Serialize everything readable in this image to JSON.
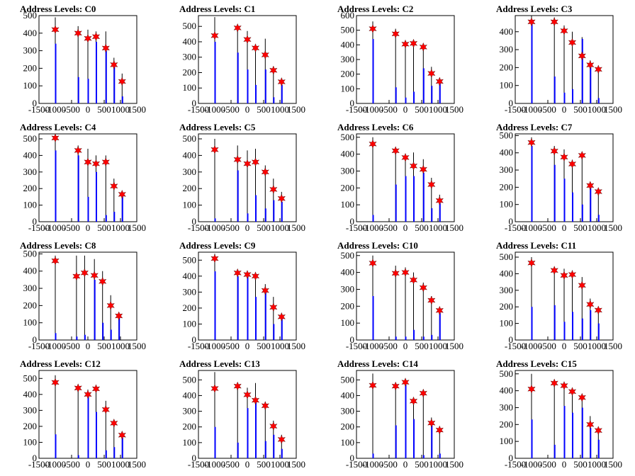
{
  "colors": {
    "bar": "#0000ff",
    "marker": "#ff0000",
    "frame": "#000000",
    "background": "#ffffff"
  },
  "chart_data": [
    {
      "type": "bar",
      "title": "Address Levels: C0",
      "xlim": [
        -1500,
        1500
      ],
      "ylim": [
        0,
        500
      ],
      "xticks": [
        -1500,
        -1000,
        -500,
        0,
        500,
        1000,
        1500
      ],
      "yticks": [
        0,
        100,
        200,
        300,
        400,
        500
      ],
      "yticklabels": [
        "0",
        "100",
        "200",
        "300",
        "400",
        "500"
      ],
      "peaks": [
        -1000,
        -300,
        0,
        250,
        550,
        800,
        1050
      ],
      "markers": [
        420,
        400,
        370,
        380,
        315,
        220,
        125
      ],
      "black_bars": [
        490,
        440,
        420,
        410,
        410,
        260,
        170
      ],
      "blue_bars": [
        340,
        150,
        140,
        350,
        300,
        210,
        40
      ]
    },
    {
      "type": "bar",
      "title": "Address Levels: C1",
      "xlim": [
        -1500,
        1500
      ],
      "ylim": [
        0,
        570
      ],
      "xticks": [
        -1500,
        -1000,
        -500,
        0,
        500,
        1000,
        1500
      ],
      "yticks": [
        0,
        100,
        200,
        300,
        400,
        500
      ],
      "yticklabels": [
        "0",
        "100",
        "200",
        "300",
        "400",
        "500"
      ],
      "peaks": [
        -1000,
        -300,
        0,
        250,
        550,
        800,
        1050
      ],
      "markers": [
        440,
        490,
        415,
        360,
        315,
        215,
        140
      ],
      "black_bars": [
        560,
        500,
        470,
        380,
        420,
        240,
        155
      ],
      "blue_bars": [
        400,
        330,
        220,
        120,
        220,
        40,
        120
      ]
    },
    {
      "type": "bar",
      "title": "Address Levels: C2",
      "xlim": [
        -1500,
        1500
      ],
      "ylim": [
        0,
        600
      ],
      "xticks": [
        -1500,
        -1000,
        -500,
        0,
        500,
        1000,
        1500
      ],
      "yticks": [
        0,
        100,
        200,
        300,
        400,
        500,
        600
      ],
      "yticklabels": [
        "0",
        "100",
        "200",
        "300",
        "400",
        "500",
        "600"
      ],
      "peaks": [
        -1000,
        -300,
        0,
        250,
        550,
        800,
        1050
      ],
      "markers": [
        510,
        475,
        405,
        410,
        385,
        205,
        150
      ],
      "black_bars": [
        560,
        510,
        420,
        420,
        400,
        250,
        175
      ],
      "blue_bars": [
        440,
        110,
        40,
        80,
        240,
        120,
        150
      ]
    },
    {
      "type": "bar",
      "title": "Address Levels: C3",
      "xlim": [
        -1500,
        1500
      ],
      "ylim": [
        0,
        490
      ],
      "xticks": [
        -1500,
        -1000,
        -500,
        0,
        500,
        1000,
        1500
      ],
      "yticks": [
        0,
        100,
        200,
        300,
        400
      ],
      "yticklabels": [
        "0",
        "100",
        "200",
        "300",
        "400"
      ],
      "peaks": [
        -1000,
        -300,
        0,
        250,
        550,
        800,
        1050
      ],
      "markers": [
        455,
        455,
        405,
        340,
        265,
        215,
        190
      ],
      "black_bars": [
        490,
        480,
        435,
        400,
        370,
        240,
        200
      ],
      "blue_bars": [
        460,
        150,
        60,
        80,
        360,
        210,
        30
      ]
    },
    {
      "type": "bar",
      "title": "Address Levels: C4",
      "xlim": [
        -1500,
        1500
      ],
      "ylim": [
        0,
        530
      ],
      "xticks": [
        -1500,
        -1000,
        -500,
        0,
        500,
        1000,
        1500
      ],
      "yticks": [
        0,
        100,
        200,
        300,
        400,
        500
      ],
      "yticklabels": [
        "0",
        "100",
        "200",
        "300",
        "400",
        "500"
      ],
      "peaks": [
        -1000,
        -300,
        0,
        250,
        550,
        800,
        1050
      ],
      "markers": [
        505,
        430,
        360,
        350,
        360,
        215,
        165
      ],
      "black_bars": [
        520,
        460,
        440,
        400,
        400,
        260,
        180
      ],
      "blue_bars": [
        430,
        400,
        150,
        300,
        40,
        60,
        160
      ]
    },
    {
      "type": "bar",
      "title": "Address Levels: C5",
      "xlim": [
        -1500,
        1500
      ],
      "ylim": [
        0,
        530
      ],
      "xticks": [
        -1500,
        -1000,
        -500,
        0,
        500,
        1000,
        1500
      ],
      "yticks": [
        0,
        100,
        200,
        300,
        400,
        500
      ],
      "yticklabels": [
        "0",
        "100",
        "200",
        "300",
        "400",
        "500"
      ],
      "peaks": [
        -1000,
        -300,
        0,
        250,
        550,
        800,
        1050
      ],
      "markers": [
        435,
        375,
        350,
        360,
        300,
        195,
        140
      ],
      "black_bars": [
        500,
        460,
        430,
        440,
        340,
        260,
        180
      ],
      "blue_bars": [
        20,
        310,
        50,
        160,
        80,
        130,
        120
      ]
    },
    {
      "type": "bar",
      "title": "Address Levels: C6",
      "xlim": [
        -1500,
        1500
      ],
      "ylim": [
        0,
        520
      ],
      "xticks": [
        -1500,
        -1000,
        -500,
        0,
        500,
        1000,
        1500
      ],
      "yticks": [
        0,
        100,
        200,
        300,
        400,
        500
      ],
      "yticklabels": [
        "0",
        "100",
        "200",
        "300",
        "400",
        "500"
      ],
      "peaks": [
        -1000,
        -300,
        0,
        250,
        550,
        800,
        1050
      ],
      "markers": [
        460,
        420,
        380,
        330,
        310,
        220,
        125
      ],
      "black_bars": [
        500,
        440,
        400,
        410,
        370,
        260,
        160
      ],
      "blue_bars": [
        40,
        220,
        270,
        270,
        290,
        80,
        110
      ]
    },
    {
      "type": "bar",
      "title": "Address Levels: C7",
      "xlim": [
        -1500,
        1500
      ],
      "ylim": [
        0,
        510
      ],
      "xticks": [
        -1500,
        -1000,
        -500,
        0,
        500,
        1000,
        1500
      ],
      "yticks": [
        0,
        100,
        200,
        300,
        400,
        500
      ],
      "yticklabels": [
        "0",
        "100",
        "200",
        "300",
        "400",
        "500"
      ],
      "peaks": [
        -1000,
        -300,
        0,
        250,
        550,
        800,
        1050
      ],
      "markers": [
        460,
        410,
        375,
        335,
        385,
        210,
        175
      ],
      "black_bars": [
        490,
        440,
        420,
        360,
        400,
        230,
        190
      ],
      "blue_bars": [
        440,
        330,
        250,
        170,
        100,
        200,
        40
      ]
    },
    {
      "type": "bar",
      "title": "Address Levels: C8",
      "xlim": [
        -1500,
        1500
      ],
      "ylim": [
        0,
        510
      ],
      "xticks": [
        -1500,
        -1000,
        -500,
        0,
        500,
        1000,
        1500
      ],
      "yticks": [
        0,
        100,
        200,
        300,
        400,
        500
      ],
      "yticklabels": [
        "0",
        "100",
        "200",
        "300",
        "400",
        "500"
      ],
      "peaks": [
        -1000,
        -350,
        -100,
        200,
        450,
        700,
        950
      ],
      "markers": [
        460,
        370,
        390,
        375,
        340,
        200,
        140
      ],
      "black_bars": [
        490,
        490,
        490,
        470,
        400,
        260,
        160
      ],
      "blue_bars": [
        40,
        20,
        30,
        350,
        100,
        60,
        130
      ]
    },
    {
      "type": "bar",
      "title": "Address Levels: C9",
      "xlim": [
        -1500,
        1500
      ],
      "ylim": [
        0,
        550
      ],
      "xticks": [
        -1500,
        -1000,
        -500,
        0,
        500,
        1000,
        1500
      ],
      "yticks": [
        0,
        100,
        200,
        300,
        400,
        500
      ],
      "yticklabels": [
        "0",
        "100",
        "200",
        "300",
        "400",
        "500"
      ],
      "peaks": [
        -1000,
        -300,
        0,
        250,
        550,
        800,
        1050
      ],
      "markers": [
        510,
        420,
        410,
        400,
        310,
        205,
        145
      ],
      "black_bars": [
        540,
        440,
        430,
        420,
        350,
        270,
        160
      ],
      "blue_bars": [
        430,
        400,
        400,
        270,
        300,
        100,
        140
      ]
    },
    {
      "type": "bar",
      "title": "Address Levels: C10",
      "xlim": [
        -1500,
        1500
      ],
      "ylim": [
        0,
        520
      ],
      "xticks": [
        -1500,
        -1000,
        -500,
        0,
        500,
        1000,
        1500
      ],
      "yticks": [
        0,
        100,
        200,
        300,
        400,
        500
      ],
      "yticklabels": [
        "0",
        "100",
        "200",
        "300",
        "400",
        "500"
      ],
      "peaks": [
        -1000,
        -300,
        0,
        250,
        550,
        800,
        1050
      ],
      "markers": [
        455,
        395,
        400,
        355,
        310,
        235,
        175
      ],
      "black_bars": [
        500,
        440,
        430,
        400,
        340,
        260,
        190
      ],
      "blue_bars": [
        260,
        20,
        20,
        60,
        20,
        30,
        160
      ]
    },
    {
      "type": "bar",
      "title": "Address Levels: C11",
      "xlim": [
        -1500,
        1500
      ],
      "ylim": [
        0,
        530
      ],
      "xticks": [
        -1500,
        -1000,
        -500,
        0,
        500,
        1000,
        1500
      ],
      "yticks": [
        0,
        100,
        200,
        300,
        400,
        500
      ],
      "yticklabels": [
        "0",
        "100",
        "200",
        "300",
        "400",
        "500"
      ],
      "peaks": [
        -1000,
        -300,
        0,
        250,
        550,
        800,
        1050
      ],
      "markers": [
        465,
        420,
        390,
        395,
        330,
        215,
        180
      ],
      "black_bars": [
        500,
        440,
        430,
        420,
        380,
        250,
        190
      ],
      "blue_bars": [
        200,
        210,
        110,
        170,
        130,
        180,
        100
      ]
    },
    {
      "type": "bar",
      "title": "Address Levels: C12",
      "xlim": [
        -1500,
        1500
      ],
      "ylim": [
        0,
        550
      ],
      "xticks": [
        -1500,
        -1000,
        -500,
        0,
        500,
        1000,
        1500
      ],
      "yticks": [
        0,
        100,
        200,
        300,
        400,
        500
      ],
      "yticklabels": [
        "0",
        "100",
        "200",
        "300",
        "400",
        "500"
      ],
      "peaks": [
        -1000,
        -300,
        0,
        250,
        550,
        800,
        1050
      ],
      "markers": [
        475,
        440,
        400,
        435,
        305,
        220,
        145
      ],
      "black_bars": [
        520,
        460,
        430,
        440,
        360,
        240,
        160
      ],
      "blue_bars": [
        150,
        20,
        400,
        290,
        50,
        70,
        130
      ]
    },
    {
      "type": "bar",
      "title": "Address Levels: C13",
      "xlim": [
        -1500,
        1500
      ],
      "ylim": [
        0,
        560
      ],
      "xticks": [
        -1500,
        -1000,
        -500,
        0,
        500,
        1000,
        1500
      ],
      "yticks": [
        0,
        100,
        200,
        300,
        400,
        500
      ],
      "yticklabels": [
        "0",
        "100",
        "200",
        "300",
        "400",
        "500"
      ],
      "peaks": [
        -1000,
        -300,
        0,
        250,
        550,
        800,
        1050
      ],
      "markers": [
        445,
        460,
        405,
        370,
        335,
        205,
        120
      ],
      "black_bars": [
        550,
        480,
        450,
        480,
        360,
        240,
        150
      ],
      "blue_bars": [
        200,
        100,
        320,
        380,
        110,
        150,
        60
      ]
    },
    {
      "type": "bar",
      "title": "Address Levels: C14",
      "xlim": [
        -1500,
        1500
      ],
      "ylim": [
        0,
        560
      ],
      "xticks": [
        -1500,
        -1000,
        -500,
        0,
        500,
        1000,
        1500
      ],
      "yticks": [
        0,
        100,
        200,
        300,
        400,
        500
      ],
      "yticklabels": [
        "0",
        "100",
        "200",
        "300",
        "400",
        "500"
      ],
      "peaks": [
        -1000,
        -300,
        0,
        250,
        550,
        800,
        1050
      ],
      "markers": [
        465,
        460,
        485,
        365,
        415,
        225,
        180
      ],
      "black_bars": [
        540,
        480,
        500,
        380,
        430,
        260,
        190
      ],
      "blue_bars": [
        30,
        210,
        470,
        250,
        20,
        230,
        30
      ]
    },
    {
      "type": "bar",
      "title": "Address Levels: C15",
      "xlim": [
        -1500,
        1500
      ],
      "ylim": [
        0,
        520
      ],
      "xticks": [
        -1500,
        -1000,
        -500,
        0,
        500,
        1000,
        1500
      ],
      "yticks": [
        0,
        100,
        200,
        300,
        400,
        500
      ],
      "yticklabels": [
        "0",
        "100",
        "200",
        "300",
        "400",
        "500"
      ],
      "peaks": [
        -1000,
        -300,
        0,
        250,
        550,
        800,
        1050
      ],
      "markers": [
        410,
        445,
        430,
        395,
        360,
        200,
        165
      ],
      "black_bars": [
        500,
        460,
        450,
        410,
        370,
        250,
        180
      ],
      "blue_bars": [
        230,
        80,
        310,
        270,
        300,
        180,
        110
      ]
    }
  ]
}
